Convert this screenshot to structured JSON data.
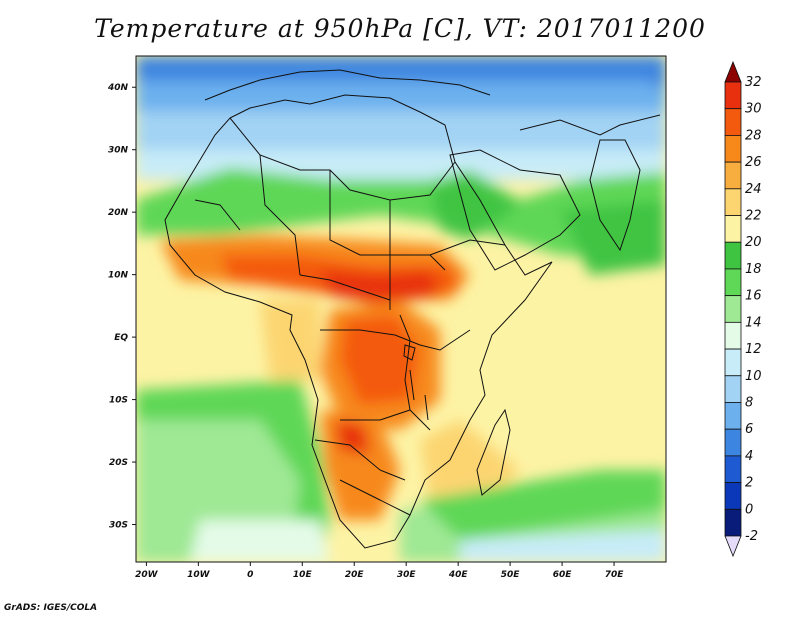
{
  "title": "Temperature at 950hPa [C], VT: 2017011200",
  "credit": "GrADS: IGES/COLA",
  "map": {
    "lon_range": [
      -22,
      80
    ],
    "lat_range": [
      -36,
      45
    ],
    "x_ticks": [
      {
        "lon": -20,
        "label": "20W"
      },
      {
        "lon": -10,
        "label": "10W"
      },
      {
        "lon": 0,
        "label": "0"
      },
      {
        "lon": 10,
        "label": "10E"
      },
      {
        "lon": 20,
        "label": "20E"
      },
      {
        "lon": 30,
        "label": "30E"
      },
      {
        "lon": 40,
        "label": "40E"
      },
      {
        "lon": 50,
        "label": "50E"
      },
      {
        "lon": 60,
        "label": "60E"
      },
      {
        "lon": 70,
        "label": "70E"
      }
    ],
    "y_ticks": [
      {
        "lat": 40,
        "label": "40N"
      },
      {
        "lat": 30,
        "label": "30N"
      },
      {
        "lat": 20,
        "label": "20N"
      },
      {
        "lat": 10,
        "label": "10N"
      },
      {
        "lat": 0,
        "label": "EQ"
      },
      {
        "lat": -10,
        "label": "10S"
      },
      {
        "lat": -20,
        "label": "20S"
      },
      {
        "lat": -30,
        "label": "30S"
      }
    ]
  },
  "colorbar": {
    "levels": [
      "32",
      "30",
      "28",
      "26",
      "24",
      "22",
      "20",
      "18",
      "16",
      "14",
      "12",
      "10",
      "8",
      "6",
      "4",
      "2",
      "0",
      "-2"
    ],
    "colors": [
      "#8c0000",
      "#e8300f",
      "#f45a0d",
      "#f7891b",
      "#f8ae3f",
      "#fcd571",
      "#fdf3a5",
      "#3fc442",
      "#5fd757",
      "#9fe894",
      "#e4fbe8",
      "#c8ecf8",
      "#a2d3f4",
      "#6cb0ee",
      "#3c85e0",
      "#1e5bd2",
      "#0b38b8",
      "#0a1c7a",
      "#e4dcf8"
    ]
  }
}
